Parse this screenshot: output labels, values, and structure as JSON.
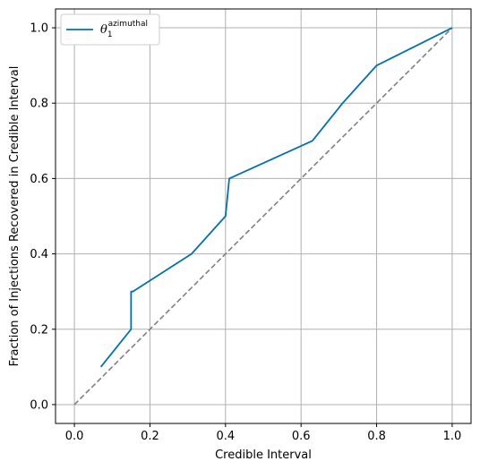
{
  "chart_data": {
    "type": "line",
    "title": "",
    "xlabel": "Credible Interval",
    "ylabel": "Fraction of Injections Recovered in Credible Interval",
    "xlim": [
      -0.05,
      1.05
    ],
    "ylim": [
      -0.05,
      1.05
    ],
    "grid": true,
    "xticks": [
      "0.0",
      "0.2",
      "0.4",
      "0.6",
      "0.8",
      "1.0"
    ],
    "yticks": [
      "0.0",
      "0.2",
      "0.4",
      "0.6",
      "0.8",
      "1.0"
    ],
    "legend_position": "top-left",
    "series": [
      {
        "name": "θ",
        "name_subscript": "1",
        "name_superscript": "azimuthal",
        "color": "#0072B2",
        "style": "solid",
        "x": [
          0.07,
          0.15,
          0.15,
          0.155,
          0.31,
          0.4,
          0.41,
          0.63,
          0.71,
          0.8,
          1.0
        ],
        "y": [
          0.1,
          0.2,
          0.3,
          0.3,
          0.4,
          0.5,
          0.6,
          0.7,
          0.8,
          0.9,
          1.0
        ]
      },
      {
        "color": "#808080",
        "style": "dashed",
        "x": [
          0.0,
          1.0
        ],
        "y": [
          0.0,
          1.0
        ]
      }
    ]
  }
}
